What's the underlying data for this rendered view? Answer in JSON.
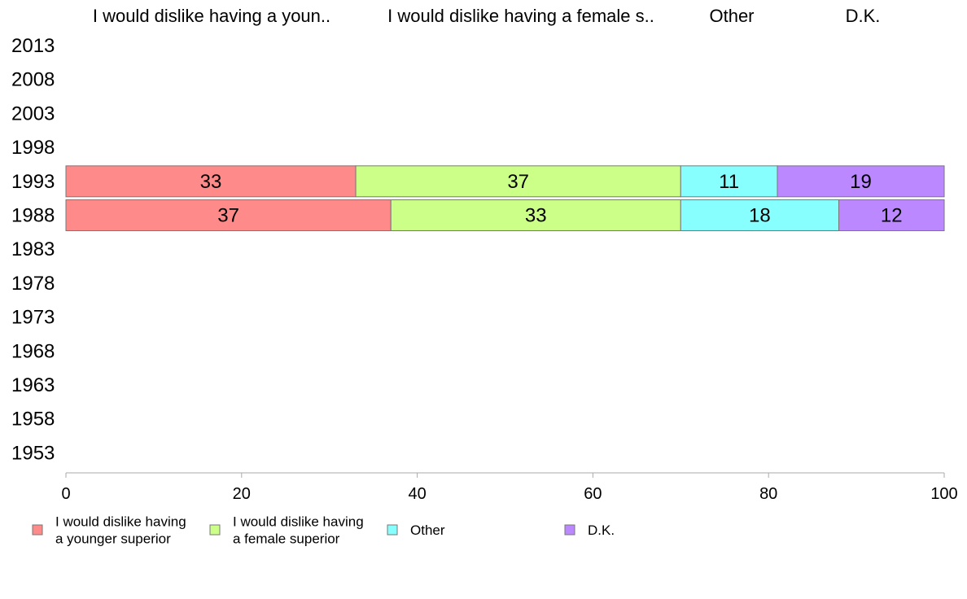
{
  "chart_data": {
    "type": "bar",
    "orientation": "horizontal",
    "stacked": true,
    "categories": [
      "2013",
      "2008",
      "2003",
      "1998",
      "1993",
      "1988",
      "1983",
      "1978",
      "1973",
      "1968",
      "1963",
      "1958",
      "1953"
    ],
    "series": [
      {
        "name": "I would dislike having a younger superior",
        "header": "I would dislike having a youn..",
        "legend_lines": [
          "I would dislike having",
          "a younger superior"
        ],
        "color": "#ff8a8a",
        "values": [
          null,
          null,
          null,
          null,
          33,
          37,
          null,
          null,
          null,
          null,
          null,
          null,
          null
        ]
      },
      {
        "name": "I would dislike having a female superior",
        "header": "I would dislike having a female s..",
        "legend_lines": [
          "I would dislike having",
          "a female superior"
        ],
        "color": "#ccff88",
        "values": [
          null,
          null,
          null,
          null,
          37,
          33,
          null,
          null,
          null,
          null,
          null,
          null,
          null
        ]
      },
      {
        "name": "Other",
        "header": "Other",
        "legend_lines": [
          "Other"
        ],
        "color": "#88ffff",
        "values": [
          null,
          null,
          null,
          null,
          11,
          18,
          null,
          null,
          null,
          null,
          null,
          null,
          null
        ]
      },
      {
        "name": "D.K.",
        "header": "D.K.",
        "legend_lines": [
          "D.K."
        ],
        "color": "#bb88ff",
        "values": [
          null,
          null,
          null,
          null,
          19,
          12,
          null,
          null,
          null,
          null,
          null,
          null,
          null
        ]
      }
    ],
    "xlim": [
      0,
      100
    ],
    "xticks": [
      "0",
      "20",
      "40",
      "60",
      "80",
      "100"
    ],
    "grid": false,
    "legend_position": "bottom"
  }
}
